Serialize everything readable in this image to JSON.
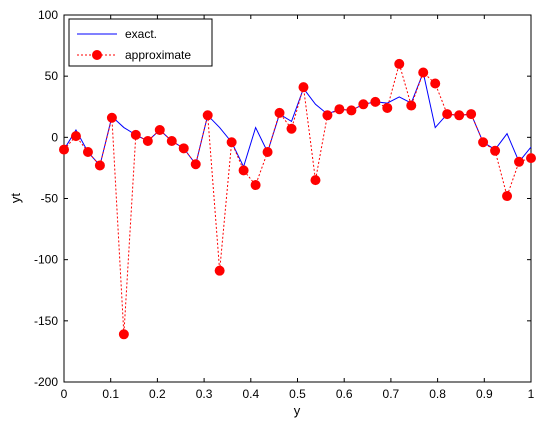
{
  "chart_data": {
    "type": "line",
    "title": "",
    "xlabel": "y",
    "ylabel": "yt",
    "xlim": [
      0,
      1
    ],
    "ylim": [
      -200,
      100
    ],
    "xticks": [
      0,
      0.1,
      0.2,
      0.3,
      0.4,
      0.5,
      0.6,
      0.7,
      0.8,
      0.9,
      1
    ],
    "xtick_labels": [
      "0",
      "0.1",
      "0.2",
      "0.3",
      "0.4",
      "0.5",
      "0.6",
      "0.7",
      "0.8",
      "0.9",
      "1"
    ],
    "yticks": [
      100,
      50,
      0,
      -50,
      -100,
      -150,
      -200
    ],
    "ytick_labels": [
      "100",
      "50",
      "0",
      "-50",
      "-100",
      "-150",
      "-200"
    ],
    "grid": false,
    "legend_position": "top-left",
    "x": [
      0,
      0.0256,
      0.0513,
      0.0769,
      0.1026,
      0.1282,
      0.1538,
      0.1795,
      0.2051,
      0.2308,
      0.2564,
      0.2821,
      0.3077,
      0.3333,
      0.359,
      0.3846,
      0.4103,
      0.4359,
      0.4615,
      0.4872,
      0.5128,
      0.5385,
      0.5641,
      0.5897,
      0.6154,
      0.641,
      0.6667,
      0.6923,
      0.7179,
      0.7436,
      0.7692,
      0.7949,
      0.8205,
      0.8462,
      0.8718,
      0.8974,
      0.9231,
      0.9487,
      0.9744,
      1
    ],
    "series": [
      {
        "name": "exact.",
        "color": "#0000ff",
        "style": "solid",
        "values": [
          -10,
          6,
          -12,
          -23,
          17,
          8,
          2,
          -3,
          6,
          -3,
          -9,
          -22,
          18,
          8,
          -4,
          -24,
          8,
          -12,
          19,
          13,
          40,
          27,
          19,
          23,
          22,
          27,
          29,
          28,
          33,
          28,
          53,
          8,
          19,
          18,
          19,
          -4,
          -10,
          3,
          -20,
          -8
        ]
      },
      {
        "name": "approximate",
        "color": "#ff0000",
        "style": "dotted",
        "marker": "circle",
        "values": [
          -10,
          1,
          -12,
          -23,
          16,
          -161,
          2,
          -3,
          6,
          -3,
          -9,
          -22,
          18,
          -109,
          -4,
          -27,
          -39,
          -12,
          20,
          7,
          41,
          -35,
          18,
          23,
          22,
          27,
          29,
          24,
          60,
          26,
          53,
          44,
          19,
          18,
          19,
          -4,
          -11,
          -48,
          -20,
          -17
        ]
      }
    ]
  }
}
